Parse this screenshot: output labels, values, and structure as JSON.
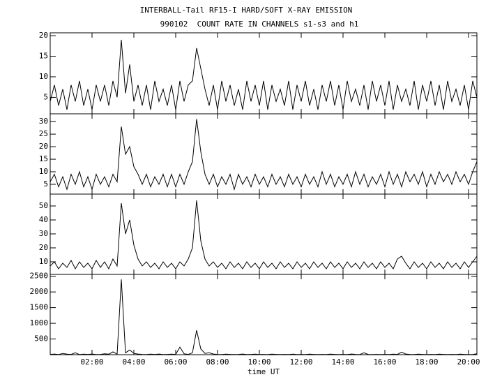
{
  "chart_data": {
    "type": "line",
    "title": "INTERBALL-Tail RF15-I HARD/SOFT X-RAY EMISSION",
    "subtitle": "990102  COUNT RATE IN CHANNELS s1-s3 and h1",
    "xlabel": "time UT",
    "color": "#000000",
    "xlim": [
      0,
      20.4
    ],
    "xticks": [
      {
        "value": 2,
        "label": "02:00"
      },
      {
        "value": 4,
        "label": "04:00"
      },
      {
        "value": 6,
        "label": "06:00"
      },
      {
        "value": 8,
        "label": "08:00"
      },
      {
        "value": 10,
        "label": "10:00"
      },
      {
        "value": 12,
        "label": "12:00"
      },
      {
        "value": 14,
        "label": "14:00"
      },
      {
        "value": 16,
        "label": "16:00"
      },
      {
        "value": 18,
        "label": "18:00"
      },
      {
        "value": 20,
        "label": "20:00"
      }
    ],
    "x": [
      0,
      0.2,
      0.4,
      0.6,
      0.8,
      1,
      1.2,
      1.4,
      1.6,
      1.8,
      2,
      2.2,
      2.4,
      2.6,
      2.8,
      3,
      3.2,
      3.4,
      3.6,
      3.8,
      4,
      4.2,
      4.4,
      4.6,
      4.8,
      5,
      5.2,
      5.4,
      5.6,
      5.8,
      6,
      6.2,
      6.4,
      6.6,
      6.8,
      7,
      7.2,
      7.4,
      7.6,
      7.8,
      8,
      8.2,
      8.4,
      8.6,
      8.8,
      9,
      9.2,
      9.4,
      9.6,
      9.8,
      10,
      10.2,
      10.4,
      10.6,
      10.8,
      11,
      11.2,
      11.4,
      11.6,
      11.8,
      12,
      12.2,
      12.4,
      12.6,
      12.8,
      13,
      13.2,
      13.4,
      13.6,
      13.8,
      14,
      14.2,
      14.4,
      14.6,
      14.8,
      15,
      15.2,
      15.4,
      15.6,
      15.8,
      16,
      16.2,
      16.4,
      16.6,
      16.8,
      17,
      17.2,
      17.4,
      17.6,
      17.8,
      18,
      18.2,
      18.4,
      18.6,
      18.8,
      19,
      19.2,
      19.4,
      19.6,
      19.8,
      20,
      20.2,
      20.4
    ],
    "panels": [
      {
        "ylim": [
          1,
          20.7
        ],
        "yticks": [
          5,
          10,
          15,
          20
        ],
        "values": [
          4,
          8,
          3,
          7,
          2,
          8,
          4,
          9,
          3,
          7,
          2,
          8,
          4,
          8,
          3,
          9,
          5,
          19,
          6,
          13,
          4,
          8,
          3,
          8,
          2,
          9,
          4,
          7,
          3,
          8,
          2,
          9,
          4,
          8,
          9,
          17,
          12,
          7,
          3,
          8,
          2,
          9,
          4,
          8,
          3,
          7,
          2,
          9,
          4,
          8,
          3,
          9,
          2,
          8,
          4,
          7,
          3,
          9,
          2,
          8,
          4,
          9,
          3,
          7,
          2,
          8,
          4,
          9,
          3,
          8,
          2,
          9,
          4,
          7,
          3,
          8,
          2,
          9,
          4,
          8,
          3,
          9,
          2,
          8,
          4,
          7,
          3,
          9,
          2,
          8,
          4,
          9,
          3,
          8,
          2,
          9,
          4,
          7,
          3,
          8,
          2,
          9,
          5
        ]
      },
      {
        "ylim": [
          1.1,
          33.1
        ],
        "yticks": [
          5,
          10,
          15,
          20,
          25,
          30
        ],
        "values": [
          6,
          9,
          4,
          8,
          3,
          9,
          5,
          10,
          4,
          8,
          3,
          9,
          5,
          8,
          4,
          9,
          6,
          28,
          17,
          20,
          12,
          9,
          5,
          9,
          4,
          8,
          5,
          9,
          4,
          9,
          4,
          9,
          5,
          10,
          14,
          31,
          18,
          9,
          5,
          9,
          4,
          8,
          5,
          9,
          3,
          9,
          5,
          8,
          4,
          9,
          5,
          8,
          4,
          9,
          5,
          8,
          4,
          9,
          5,
          8,
          4,
          9,
          5,
          8,
          4,
          10,
          5,
          9,
          4,
          8,
          5,
          9,
          4,
          10,
          5,
          9,
          4,
          8,
          5,
          9,
          4,
          10,
          5,
          9,
          4,
          10,
          6,
          9,
          5,
          10,
          4,
          9,
          5,
          10,
          6,
          9,
          5,
          10,
          6,
          9,
          5,
          10,
          14
        ]
      },
      {
        "ylim": [
          1,
          58.5
        ],
        "yticks": [
          10,
          20,
          30,
          40,
          50
        ],
        "values": [
          7,
          10,
          5,
          9,
          6,
          11,
          5,
          10,
          6,
          9,
          5,
          11,
          6,
          10,
          5,
          12,
          7,
          52,
          30,
          40,
          22,
          12,
          7,
          10,
          6,
          9,
          5,
          10,
          6,
          9,
          5,
          10,
          7,
          12,
          20,
          54,
          25,
          12,
          7,
          10,
          6,
          9,
          5,
          10,
          6,
          9,
          5,
          10,
          6,
          9,
          5,
          10,
          6,
          9,
          5,
          10,
          6,
          9,
          5,
          10,
          6,
          9,
          5,
          10,
          6,
          9,
          5,
          10,
          6,
          9,
          5,
          10,
          6,
          9,
          5,
          10,
          6,
          9,
          5,
          10,
          6,
          9,
          5,
          12,
          14,
          9,
          5,
          10,
          6,
          9,
          5,
          10,
          6,
          9,
          5,
          10,
          6,
          9,
          5,
          10,
          6,
          10,
          14
        ]
      },
      {
        "ylim": [
          0,
          2560
        ],
        "yticks": [
          500,
          1000,
          1500,
          2000,
          2500
        ],
        "values": [
          10,
          20,
          5,
          40,
          15,
          10,
          60,
          5,
          15,
          10,
          20,
          5,
          10,
          30,
          15,
          90,
          20,
          2400,
          60,
          150,
          40,
          20,
          10,
          5,
          15,
          10,
          20,
          5,
          10,
          15,
          10,
          240,
          30,
          10,
          60,
          780,
          180,
          40,
          60,
          20,
          10,
          5,
          15,
          10,
          5,
          10,
          20,
          5,
          10,
          15,
          5,
          10,
          5,
          15,
          10,
          5,
          10,
          5,
          15,
          5,
          10,
          5,
          15,
          10,
          5,
          10,
          5,
          15,
          10,
          5,
          10,
          5,
          20,
          10,
          5,
          60,
          10,
          5,
          10,
          5,
          10,
          5,
          15,
          10,
          80,
          20,
          10,
          5,
          15,
          10,
          5,
          10,
          5,
          15,
          10,
          5,
          10,
          5,
          15,
          10,
          5,
          10,
          30
        ]
      }
    ]
  }
}
